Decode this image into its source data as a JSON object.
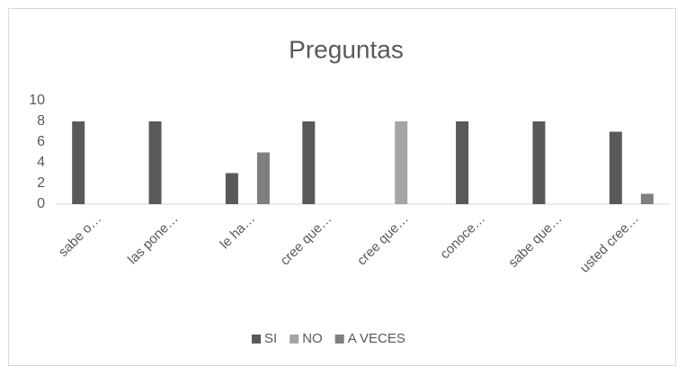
{
  "chart_data": {
    "type": "bar",
    "title": "Preguntas",
    "categories": [
      "sabe o…",
      "las pone…",
      "le ha…",
      "cree que…",
      "cree que…",
      "conoce…",
      "sabe que…",
      "usted cree…"
    ],
    "series": [
      {
        "name": "SI",
        "color": "#595959",
        "values": [
          8,
          8,
          3,
          8,
          0,
          8,
          8,
          7
        ]
      },
      {
        "name": "NO",
        "color": "#a5a5a5",
        "values": [
          0,
          0,
          0,
          0,
          8,
          0,
          0,
          0
        ]
      },
      {
        "name": "A VECES",
        "color": "#7f7f7f",
        "values": [
          0,
          0,
          5,
          0,
          0,
          0,
          0,
          1
        ]
      }
    ],
    "ylim": [
      0,
      10
    ],
    "yticks": [
      0,
      2,
      4,
      6,
      8,
      10
    ],
    "legend": "bottom"
  }
}
